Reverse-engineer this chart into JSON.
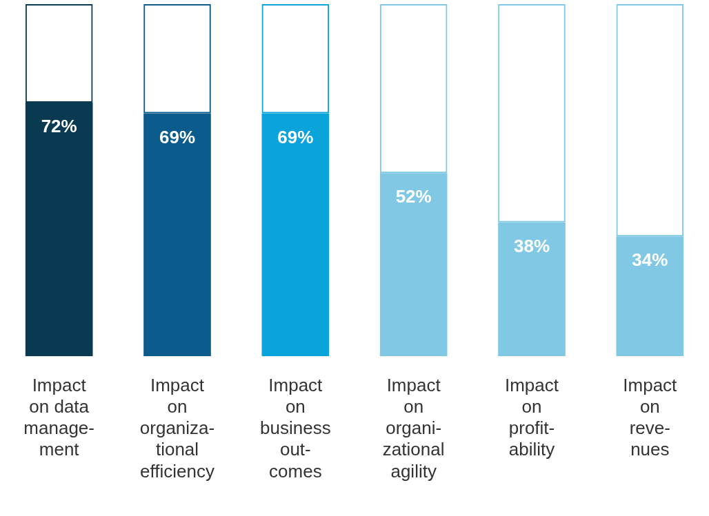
{
  "chart_data": {
    "type": "bar",
    "categories": [
      "Impact\non data\nmanage-\nment",
      "Impact\non\norganiza-\ntional\nefficiency",
      "Impact\non\nbusiness\nout-\ncomes",
      "Impact\non\norgani-\nzational\nagility",
      "Impact\non\nprofit-\nability",
      "Impact\non\nreve-\nnues"
    ],
    "series": [
      {
        "values": [
          72,
          69,
          69,
          52,
          38,
          34
        ],
        "colors": [
          "#0a3a52",
          "#0b5b8c",
          "#0aa3da",
          "#80c8e4",
          "#80c8e4",
          "#80c8e4"
        ],
        "value_labels": [
          "72%",
          "69%",
          "69%",
          "52%",
          "38%",
          "34%"
        ]
      },
      {
        "values": [
          28,
          31,
          31,
          48,
          62,
          66
        ],
        "colors": [
          "#0a3a52",
          "#0b5b8c",
          "#0aa3da",
          "#80c8e4",
          "#80c8e4",
          "#80c8e4"
        ],
        "value_labels": [
          null,
          null,
          null,
          null,
          null,
          null
        ]
      }
    ],
    "stacked": true,
    "ylim": [
      0,
      100
    ],
    "data_labels": true,
    "grid": false,
    "legend": false
  }
}
